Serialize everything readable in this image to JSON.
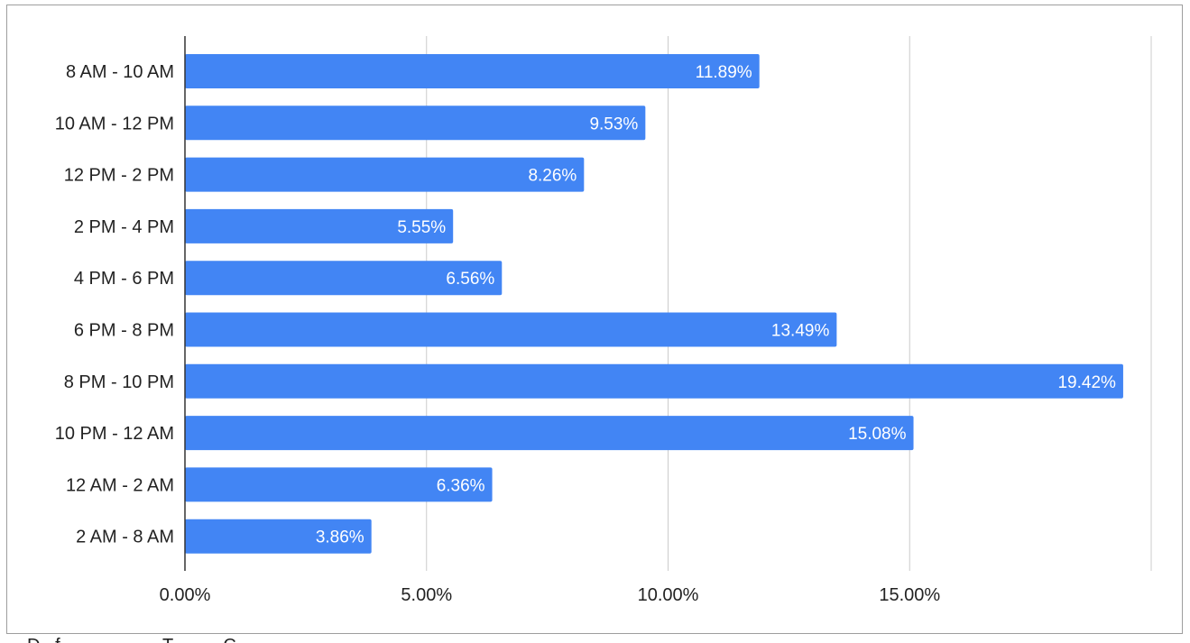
{
  "chart_data": {
    "type": "bar",
    "orientation": "horizontal",
    "title": "",
    "xlabel": "",
    "ylabel": "",
    "categories": [
      "8 AM - 10 AM",
      "10 AM - 12 PM",
      "12 PM - 2 PM",
      "2 PM - 4 PM",
      "4 PM - 6 PM",
      "6 PM - 8 PM",
      "8 PM - 10 PM",
      "10 PM - 12 AM",
      "12 AM - 2 AM",
      "2 AM - 8 AM"
    ],
    "values": [
      11.89,
      9.53,
      8.26,
      5.55,
      6.56,
      13.49,
      19.42,
      15.08,
      6.36,
      3.86
    ],
    "data_labels": [
      "11.89%",
      "9.53%",
      "8.26%",
      "5.55%",
      "6.56%",
      "13.49%",
      "19.42%",
      "15.08%",
      "6.36%",
      "3.86%"
    ],
    "xlim": [
      0,
      20
    ],
    "x_ticks": [
      0,
      5,
      10,
      15,
      20
    ],
    "x_tick_labels": [
      "0.00%",
      "5.00%",
      "10.00%",
      "15.00%",
      ""
    ],
    "grid": "vertical",
    "legend": "none",
    "bar_color": "#4285f4",
    "gridline_color": "#cccccc",
    "axis_color": "#333333"
  }
}
